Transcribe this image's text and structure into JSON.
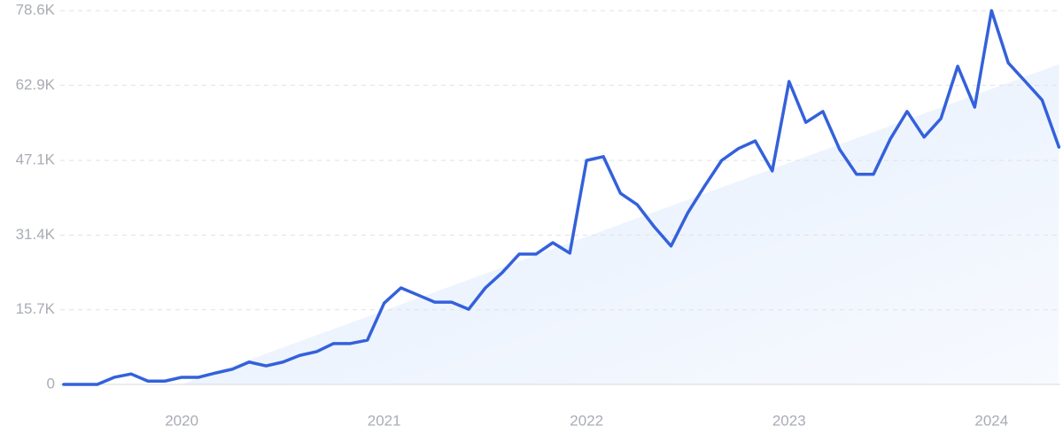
{
  "chart_data": {
    "type": "line",
    "x": [
      2019.417,
      2019.5,
      2019.583,
      2019.667,
      2019.75,
      2019.833,
      2019.917,
      2020,
      2020.083,
      2020.167,
      2020.25,
      2020.333,
      2020.417,
      2020.5,
      2020.583,
      2020.667,
      2020.75,
      2020.833,
      2020.917,
      2021,
      2021.083,
      2021.167,
      2021.25,
      2021.333,
      2021.417,
      2021.5,
      2021.583,
      2021.667,
      2021.75,
      2021.833,
      2021.917,
      2022,
      2022.083,
      2022.167,
      2022.25,
      2022.333,
      2022.417,
      2022.5,
      2022.583,
      2022.667,
      2022.75,
      2022.833,
      2022.917,
      2023,
      2023.083,
      2023.167,
      2023.25,
      2023.333,
      2023.417,
      2023.5,
      2023.583,
      2023.667,
      2023.75,
      2023.833,
      2023.917,
      2024,
      2024.083,
      2024.167,
      2024.25,
      2024.333
    ],
    "series": [
      {
        "color": "#3461db",
        "values": [
          0,
          0,
          0,
          1500,
          2200,
          700,
          700,
          1500,
          1500,
          2400,
          3200,
          4700,
          3900,
          4700,
          6100,
          6900,
          8600,
          8600,
          9300,
          17100,
          20300,
          18800,
          17300,
          17300,
          15800,
          20300,
          23500,
          27400,
          27400,
          29800,
          27600,
          47100,
          47900,
          40200,
          37800,
          33200,
          29100,
          36100,
          41700,
          47100,
          49600,
          51200,
          44900,
          63700,
          55100,
          57400,
          49400,
          44200,
          44200,
          51600,
          57400,
          52000,
          55900,
          66900,
          58300,
          78600,
          67600,
          63700,
          59800,
          49900
        ]
      }
    ],
    "trend": {
      "x": [
        2020,
        2024.333
      ],
      "values": [
        0,
        67300
      ],
      "color": "#dfeafb"
    },
    "xlim": [
      2019.4,
      2024.34
    ],
    "xticks": [
      2020,
      2021,
      2022,
      2023,
      2024
    ],
    "ylim": [
      0,
      78600
    ],
    "yticks": [
      0,
      {
        "value": 15700,
        "label": "15.7K"
      },
      {
        "value": 31400,
        "label": "31.4K"
      },
      {
        "value": 47100,
        "label": "47.1K"
      },
      {
        "value": 62900,
        "label": "62.9K"
      },
      {
        "value": 78600,
        "label": "78.6K"
      }
    ],
    "grid": true
  }
}
